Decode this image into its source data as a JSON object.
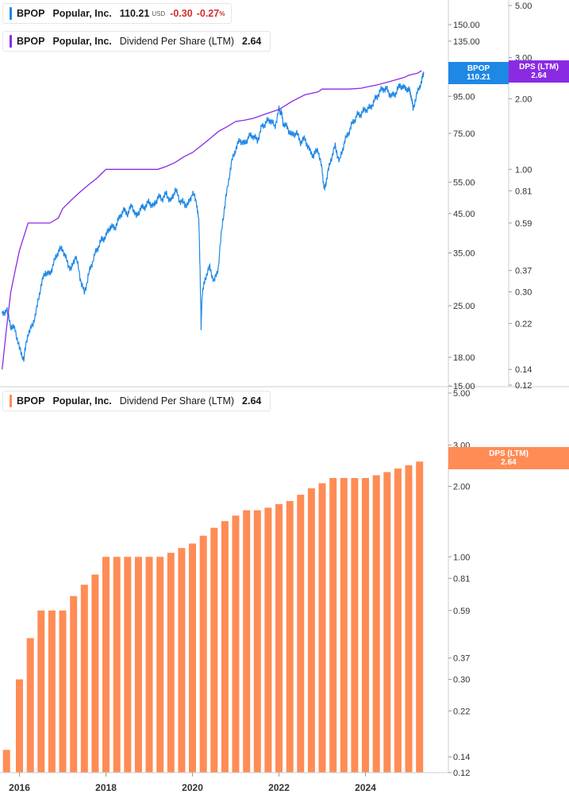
{
  "legend_price": {
    "symbol": "BPOP",
    "name": "Popular, Inc.",
    "value": "110.21",
    "currency": "USD",
    "change": "-0.30",
    "change_pct": "-0.27",
    "change_pct_sym": "%"
  },
  "legend_dps_top": {
    "symbol": "BPOP",
    "name": "Popular, Inc.",
    "metric": "Dividend Per Share (LTM)",
    "value": "2.64"
  },
  "legend_dps_bottom": {
    "symbol": "BPOP",
    "name": "Popular, Inc.",
    "metric": "Dividend Per Share (LTM)",
    "value": "2.64"
  },
  "tags": {
    "price": {
      "label": "BPOP",
      "value": "110.21"
    },
    "dps_top": {
      "label": "DPS (LTM)",
      "value": "2.64"
    },
    "dps_bottom": {
      "label": "DPS (LTM)",
      "value": "2.64"
    }
  },
  "colors": {
    "price_line": "#1e88e5",
    "dps_line": "#8a2be2",
    "bar": "#ff8c55",
    "down": "#d32f2f",
    "axis_text": "#333333"
  },
  "chart_data": [
    {
      "type": "line",
      "panel": "top",
      "scale": "log",
      "series": [
        {
          "name": "BPOP",
          "axis": "price",
          "x": [
            2015.6,
            2015.7,
            2015.8,
            2015.9,
            2016.0,
            2016.1,
            2016.2,
            2016.3,
            2016.4,
            2016.5,
            2016.6,
            2016.7,
            2016.8,
            2016.9,
            2017.0,
            2017.1,
            2017.2,
            2017.3,
            2017.4,
            2017.5,
            2017.6,
            2017.7,
            2017.8,
            2017.9,
            2018.0,
            2018.1,
            2018.2,
            2018.3,
            2018.4,
            2018.5,
            2018.6,
            2018.7,
            2018.8,
            2018.9,
            2019.0,
            2019.1,
            2019.2,
            2019.3,
            2019.4,
            2019.5,
            2019.6,
            2019.7,
            2019.8,
            2019.9,
            2020.0,
            2020.1,
            2020.15,
            2020.2,
            2020.22,
            2020.3,
            2020.4,
            2020.5,
            2020.6,
            2020.7,
            2020.8,
            2020.9,
            2021.0,
            2021.1,
            2021.2,
            2021.3,
            2021.4,
            2021.5,
            2021.6,
            2021.7,
            2021.8,
            2021.9,
            2022.0,
            2022.05,
            2022.1,
            2022.2,
            2022.3,
            2022.4,
            2022.5,
            2022.6,
            2022.7,
            2022.8,
            2022.9,
            2023.0,
            2023.05,
            2023.1,
            2023.2,
            2023.3,
            2023.4,
            2023.5,
            2023.6,
            2023.7,
            2023.8,
            2023.9,
            2024.0,
            2024.1,
            2024.2,
            2024.3,
            2024.4,
            2024.5,
            2024.6,
            2024.7,
            2024.8,
            2024.9,
            2025.0,
            2025.05,
            2025.1,
            2025.2,
            2025.3,
            2025.35
          ],
          "values": [
            23.5,
            24.5,
            22.0,
            21.5,
            19.0,
            17.8,
            21.0,
            22.0,
            24.5,
            28.5,
            31.0,
            30.5,
            33.0,
            35.5,
            36.0,
            33.0,
            31.5,
            34.5,
            30.0,
            27.0,
            30.5,
            33.5,
            36.0,
            38.0,
            39.0,
            41.5,
            41.0,
            43.5,
            46.0,
            45.0,
            47.5,
            44.0,
            46.5,
            47.0,
            48.5,
            47.0,
            50.0,
            49.5,
            51.0,
            48.5,
            52.5,
            49.0,
            48.0,
            47.5,
            51.5,
            48.0,
            42.0,
            21.5,
            26.5,
            30.0,
            32.0,
            29.0,
            32.0,
            43.0,
            52.0,
            62.0,
            68.0,
            72.0,
            70.0,
            73.5,
            74.0,
            71.5,
            78.0,
            80.5,
            82.0,
            78.0,
            87.0,
            86.0,
            80.0,
            77.5,
            74.0,
            75.5,
            71.0,
            72.5,
            67.5,
            65.0,
            68.0,
            59.0,
            52.0,
            56.0,
            63.5,
            69.0,
            62.5,
            70.0,
            75.0,
            80.0,
            84.0,
            85.0,
            87.5,
            88.0,
            92.0,
            96.5,
            100.0,
            99.0,
            95.0,
            97.0,
            102.0,
            100.0,
            99.5,
            96.0,
            88.0,
            97.0,
            105.0,
            110.21
          ]
        },
        {
          "name": "DPS (LTM)",
          "axis": "dps",
          "x": [
            2015.6,
            2015.7,
            2015.8,
            2015.9,
            2016.0,
            2016.2,
            2016.4,
            2016.5,
            2016.7,
            2016.9,
            2017.0,
            2017.2,
            2017.4,
            2017.6,
            2017.8,
            2018.0,
            2018.2,
            2018.4,
            2018.6,
            2018.8,
            2019.0,
            2019.2,
            2019.4,
            2019.6,
            2019.8,
            2020.0,
            2020.2,
            2020.4,
            2020.6,
            2020.8,
            2021.0,
            2021.2,
            2021.4,
            2021.6,
            2021.8,
            2022.0,
            2022.3,
            2022.6,
            2022.9,
            2023.0,
            2023.3,
            2023.6,
            2023.9,
            2024.0,
            2024.3,
            2024.6,
            2024.9,
            2025.0,
            2025.2,
            2025.3
          ],
          "values": [
            0.14,
            0.21,
            0.3,
            0.37,
            0.45,
            0.59,
            0.59,
            0.59,
            0.59,
            0.62,
            0.68,
            0.74,
            0.8,
            0.86,
            0.92,
            1.0,
            1.0,
            1.0,
            1.0,
            1.0,
            1.0,
            1.0,
            1.03,
            1.07,
            1.13,
            1.18,
            1.26,
            1.35,
            1.45,
            1.52,
            1.6,
            1.62,
            1.65,
            1.7,
            1.75,
            1.8,
            1.95,
            2.08,
            2.14,
            2.2,
            2.2,
            2.2,
            2.22,
            2.24,
            2.3,
            2.38,
            2.47,
            2.52,
            2.57,
            2.64
          ]
        }
      ],
      "y_axes": {
        "price": {
          "ticks": [
            15.0,
            18.0,
            25.0,
            35.0,
            45.0,
            55.0,
            75.0,
            95.0,
            135.0,
            150.0
          ],
          "tick_labels": [
            "15.00",
            "18.00",
            "25.00",
            "35.00",
            "45.00",
            "55.00",
            "75.00",
            "95.00",
            "135.00",
            "150.00"
          ],
          "range": [
            15.0,
            200.0
          ]
        },
        "dps": {
          "ticks": [
            0.12,
            0.14,
            0.22,
            0.3,
            0.37,
            0.59,
            0.81,
            1.0,
            2.0,
            3.0,
            5.0
          ],
          "tick_labels": [
            "0.12",
            "0.14",
            "0.22",
            "0.30",
            "0.37",
            "0.59",
            "0.81",
            "1.00",
            "2.00",
            "3.00",
            "5.00"
          ],
          "range": [
            0.12,
            5.0
          ]
        }
      },
      "grid": false,
      "legend_position": "top-left"
    },
    {
      "type": "bar",
      "panel": "bottom",
      "scale": "log",
      "series": [
        {
          "name": "DPS (LTM)",
          "x": [
            2015.7,
            2016.0,
            2016.25,
            2016.5,
            2016.75,
            2017.0,
            2017.25,
            2017.5,
            2017.75,
            2018.0,
            2018.25,
            2018.5,
            2018.75,
            2019.0,
            2019.25,
            2019.5,
            2019.75,
            2020.0,
            2020.25,
            2020.5,
            2020.75,
            2021.0,
            2021.25,
            2021.5,
            2021.75,
            2022.0,
            2022.25,
            2022.5,
            2022.75,
            2023.0,
            2023.25,
            2023.5,
            2023.75,
            2024.0,
            2024.25,
            2024.5,
            2024.75,
            2025.0,
            2025.25
          ],
          "values": [
            0.15,
            0.3,
            0.45,
            0.59,
            0.59,
            0.59,
            0.68,
            0.76,
            0.84,
            1.0,
            1.0,
            1.0,
            1.0,
            1.0,
            1.0,
            1.04,
            1.09,
            1.14,
            1.23,
            1.33,
            1.42,
            1.5,
            1.58,
            1.58,
            1.62,
            1.68,
            1.73,
            1.84,
            1.96,
            2.06,
            2.17,
            2.17,
            2.17,
            2.17,
            2.23,
            2.3,
            2.38,
            2.46,
            2.55
          ]
        }
      ],
      "y_axis": {
        "ticks": [
          0.12,
          0.14,
          0.22,
          0.3,
          0.37,
          0.59,
          0.81,
          1.0,
          2.0,
          3.0,
          5.0
        ],
        "tick_labels": [
          "0.12",
          "0.14",
          "0.22",
          "0.30",
          "0.37",
          "0.59",
          "0.81",
          "1.00",
          "2.00",
          "3.00",
          "5.00"
        ],
        "range": [
          0.12,
          5.0
        ]
      },
      "x_axis": {
        "ticks": [
          2016,
          2018,
          2020,
          2022,
          2024
        ],
        "tick_labels": [
          "2016",
          "2018",
          "2020",
          "2022",
          "2024"
        ],
        "range": [
          2015.55,
          2025.55
        ]
      },
      "grid": false,
      "legend_position": "top-left"
    }
  ]
}
